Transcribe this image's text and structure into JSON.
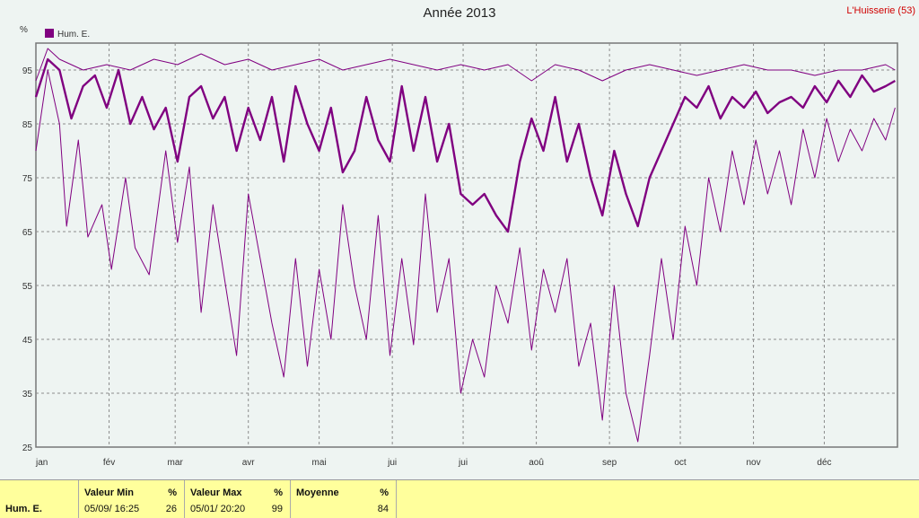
{
  "title": "Année 2013",
  "station": "L'Huisserie (53)",
  "unit_label": "%",
  "legend": {
    "label": "Hum. E.",
    "color": "#800080"
  },
  "colors": {
    "series": "#800080",
    "grid": "#8c8c8c",
    "plot_bg": "#eef4f2"
  },
  "chart_data": {
    "type": "line",
    "title": "Année 2013",
    "ylabel": "%",
    "ylim": [
      25,
      100
    ],
    "yticks": [
      25,
      35,
      45,
      55,
      65,
      75,
      85,
      95
    ],
    "xlim": [
      0,
      365
    ],
    "month_labels": [
      "jan",
      "fév",
      "mar",
      "avr",
      "mai",
      "jui",
      "jui",
      "aoû",
      "sep",
      "oct",
      "nov",
      "déc"
    ],
    "month_starts": [
      0,
      31,
      59,
      90,
      120,
      151,
      181,
      212,
      243,
      273,
      304,
      334
    ],
    "grid": true,
    "legend_position": "top-left",
    "series": [
      {
        "name": "Hum. E.",
        "role": "mean",
        "points": [
          [
            0,
            90
          ],
          [
            5,
            97
          ],
          [
            10,
            95
          ],
          [
            15,
            86
          ],
          [
            20,
            92
          ],
          [
            25,
            94
          ],
          [
            30,
            88
          ],
          [
            35,
            95
          ],
          [
            40,
            85
          ],
          [
            45,
            90
          ],
          [
            50,
            84
          ],
          [
            55,
            88
          ],
          [
            60,
            78
          ],
          [
            65,
            90
          ],
          [
            70,
            92
          ],
          [
            75,
            86
          ],
          [
            80,
            90
          ],
          [
            85,
            80
          ],
          [
            90,
            88
          ],
          [
            95,
            82
          ],
          [
            100,
            90
          ],
          [
            105,
            78
          ],
          [
            110,
            92
          ],
          [
            115,
            85
          ],
          [
            120,
            80
          ],
          [
            125,
            88
          ],
          [
            130,
            76
          ],
          [
            135,
            80
          ],
          [
            140,
            90
          ],
          [
            145,
            82
          ],
          [
            150,
            78
          ],
          [
            155,
            92
          ],
          [
            160,
            80
          ],
          [
            165,
            90
          ],
          [
            170,
            78
          ],
          [
            175,
            85
          ],
          [
            180,
            72
          ],
          [
            185,
            70
          ],
          [
            190,
            72
          ],
          [
            195,
            68
          ],
          [
            200,
            65
          ],
          [
            205,
            78
          ],
          [
            210,
            86
          ],
          [
            215,
            80
          ],
          [
            220,
            90
          ],
          [
            225,
            78
          ],
          [
            230,
            85
          ],
          [
            235,
            75
          ],
          [
            240,
            68
          ],
          [
            245,
            80
          ],
          [
            250,
            72
          ],
          [
            255,
            66
          ],
          [
            260,
            75
          ],
          [
            265,
            80
          ],
          [
            270,
            85
          ],
          [
            275,
            90
          ],
          [
            280,
            88
          ],
          [
            285,
            92
          ],
          [
            290,
            86
          ],
          [
            295,
            90
          ],
          [
            300,
            88
          ],
          [
            305,
            91
          ],
          [
            310,
            87
          ],
          [
            315,
            89
          ],
          [
            320,
            90
          ],
          [
            325,
            88
          ],
          [
            330,
            92
          ],
          [
            335,
            89
          ],
          [
            340,
            93
          ],
          [
            345,
            90
          ],
          [
            350,
            94
          ],
          [
            355,
            91
          ],
          [
            360,
            92
          ],
          [
            364,
            93
          ]
        ]
      },
      {
        "name": "",
        "role": "max",
        "points": [
          [
            0,
            93
          ],
          [
            5,
            99
          ],
          [
            10,
            97
          ],
          [
            20,
            95
          ],
          [
            30,
            96
          ],
          [
            40,
            95
          ],
          [
            50,
            97
          ],
          [
            60,
            96
          ],
          [
            70,
            98
          ],
          [
            80,
            96
          ],
          [
            90,
            97
          ],
          [
            100,
            95
          ],
          [
            110,
            96
          ],
          [
            120,
            97
          ],
          [
            130,
            95
          ],
          [
            140,
            96
          ],
          [
            150,
            97
          ],
          [
            160,
            96
          ],
          [
            170,
            95
          ],
          [
            180,
            96
          ],
          [
            190,
            95
          ],
          [
            200,
            96
          ],
          [
            210,
            93
          ],
          [
            220,
            96
          ],
          [
            230,
            95
          ],
          [
            240,
            93
          ],
          [
            250,
            95
          ],
          [
            260,
            96
          ],
          [
            270,
            95
          ],
          [
            280,
            94
          ],
          [
            290,
            95
          ],
          [
            300,
            96
          ],
          [
            310,
            95
          ],
          [
            320,
            95
          ],
          [
            330,
            94
          ],
          [
            340,
            95
          ],
          [
            350,
            95
          ],
          [
            360,
            96
          ],
          [
            364,
            95
          ]
        ]
      },
      {
        "name": "",
        "role": "min",
        "points": [
          [
            0,
            80
          ],
          [
            5,
            95
          ],
          [
            10,
            85
          ],
          [
            13,
            66
          ],
          [
            18,
            82
          ],
          [
            22,
            64
          ],
          [
            28,
            70
          ],
          [
            32,
            58
          ],
          [
            38,
            75
          ],
          [
            42,
            62
          ],
          [
            48,
            57
          ],
          [
            55,
            80
          ],
          [
            60,
            63
          ],
          [
            65,
            77
          ],
          [
            70,
            50
          ],
          [
            75,
            70
          ],
          [
            80,
            56
          ],
          [
            85,
            42
          ],
          [
            90,
            72
          ],
          [
            95,
            60
          ],
          [
            100,
            48
          ],
          [
            105,
            38
          ],
          [
            110,
            60
          ],
          [
            115,
            40
          ],
          [
            120,
            58
          ],
          [
            125,
            45
          ],
          [
            130,
            70
          ],
          [
            135,
            55
          ],
          [
            140,
            45
          ],
          [
            145,
            68
          ],
          [
            150,
            42
          ],
          [
            155,
            60
          ],
          [
            160,
            44
          ],
          [
            165,
            72
          ],
          [
            170,
            50
          ],
          [
            175,
            60
          ],
          [
            180,
            35
          ],
          [
            185,
            45
          ],
          [
            190,
            38
          ],
          [
            195,
            55
          ],
          [
            200,
            48
          ],
          [
            205,
            62
          ],
          [
            210,
            43
          ],
          [
            215,
            58
          ],
          [
            220,
            50
          ],
          [
            225,
            60
          ],
          [
            230,
            40
          ],
          [
            235,
            48
          ],
          [
            240,
            30
          ],
          [
            245,
            55
          ],
          [
            250,
            35
          ],
          [
            255,
            26
          ],
          [
            260,
            42
          ],
          [
            265,
            60
          ],
          [
            270,
            45
          ],
          [
            275,
            66
          ],
          [
            280,
            55
          ],
          [
            285,
            75
          ],
          [
            290,
            65
          ],
          [
            295,
            80
          ],
          [
            300,
            70
          ],
          [
            305,
            82
          ],
          [
            310,
            72
          ],
          [
            315,
            80
          ],
          [
            320,
            70
          ],
          [
            325,
            84
          ],
          [
            330,
            75
          ],
          [
            335,
            86
          ],
          [
            340,
            78
          ],
          [
            345,
            84
          ],
          [
            350,
            80
          ],
          [
            355,
            86
          ],
          [
            360,
            82
          ],
          [
            364,
            88
          ]
        ]
      }
    ]
  },
  "stats": {
    "row_label": "Hum. E.",
    "min": {
      "header": "Valeur Min",
      "unit": "%",
      "time": "05/09/  16:25",
      "value": "26"
    },
    "max": {
      "header": "Valeur Max",
      "unit": "%",
      "time": "05/01/  20:20",
      "value": "99"
    },
    "avg": {
      "header": "Moyenne",
      "unit": "%",
      "value": "84"
    }
  }
}
